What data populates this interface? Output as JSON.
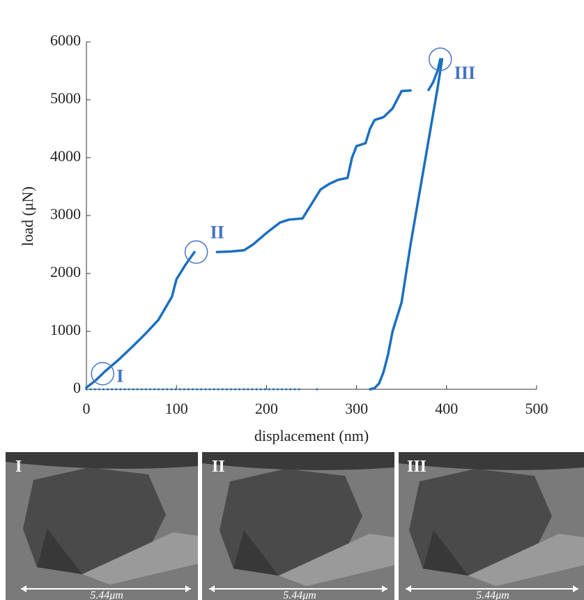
{
  "chart_data": {
    "type": "line",
    "xlabel": "displacement (nm)",
    "ylabel": "load (μN)",
    "xlim": [
      0,
      500
    ],
    "xticks": [
      0,
      100,
      200,
      300,
      400,
      500
    ],
    "ylim": [
      0,
      6000
    ],
    "yticks": [
      0,
      1000,
      2000,
      3000,
      4000,
      5000,
      6000
    ],
    "series": [
      {
        "color": "#1a6fc0",
        "linestyle": "solid",
        "x": [
          0,
          10,
          20,
          35,
          50,
          65,
          80,
          95,
          100,
          110,
          120,
          130,
          145,
          160,
          175,
          185,
          200,
          215,
          225,
          240,
          250,
          260,
          270,
          280,
          290,
          295,
          300,
          310,
          315,
          320,
          330,
          340,
          350,
          360,
          370,
          380,
          385,
          390,
          393
        ],
        "values": [
          30,
          150,
          300,
          500,
          720,
          950,
          1200,
          1600,
          1900,
          2150,
          2370,
          null,
          2370,
          2380,
          2400,
          2500,
          2700,
          2880,
          2930,
          2950,
          3200,
          3450,
          3550,
          3620,
          3650,
          4000,
          4200,
          4250,
          4500,
          4650,
          4700,
          4850,
          5150,
          5160,
          null,
          5170,
          5300,
          5500,
          5700
        ]
      },
      {
        "color": "#1a6fc0",
        "linestyle": "solid",
        "x": [
          395,
          390,
          380,
          370,
          360,
          350,
          340,
          335,
          330,
          325,
          320,
          315
        ],
        "values": [
          5700,
          5200,
          4300,
          3400,
          2500,
          1500,
          1000,
          600,
          300,
          100,
          20,
          0
        ]
      },
      {
        "color": "#1a6fc0",
        "linestyle": "dotted",
        "x": [
          0,
          240,
          250,
          256,
          260
        ],
        "values": [
          0,
          0,
          null,
          0,
          0
        ]
      }
    ],
    "annotations": [
      {
        "text": "I",
        "x": 18,
        "y": 270
      },
      {
        "text": "II",
        "x": 122,
        "y": 2370
      },
      {
        "text": "III",
        "x": 393,
        "y": 5700
      }
    ]
  },
  "panels": [
    {
      "label": "I",
      "scale": "5.44μm"
    },
    {
      "label": "II",
      "scale": "5.44μm"
    },
    {
      "label": "III",
      "scale": "5.44μm"
    }
  ]
}
